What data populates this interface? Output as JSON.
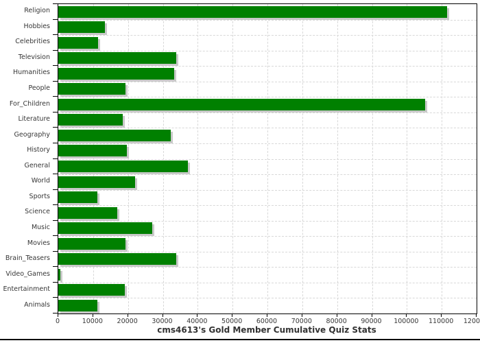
{
  "chart_data": {
    "type": "bar",
    "orientation": "horizontal",
    "title": "cms4613's Gold Member Cumulative Quiz Stats",
    "title_position": "bottom",
    "xlabel": "",
    "ylabel": "",
    "xlim": [
      0,
      120000
    ],
    "x_ticks": [
      0,
      10000,
      20000,
      30000,
      40000,
      50000,
      60000,
      70000,
      80000,
      90000,
      100000,
      110000,
      120000
    ],
    "x_tick_labels": [
      "0",
      "10000",
      "20000",
      "30000",
      "40000",
      "50000",
      "60000",
      "70000",
      "80000",
      "90000",
      "100000",
      "110000",
      "120000"
    ],
    "grid": "dashed vertical lines at each x tick and dashed horizontal lines at category boundaries",
    "legend": "none",
    "bar_color": "#008000",
    "bar_shadow_color": "#c9c9c9",
    "categories": [
      "Religion",
      "Hobbies",
      "Celebrities",
      "Television",
      "Humanities",
      "People",
      "For_Children",
      "Literature",
      "Geography",
      "History",
      "General",
      "World",
      "Sports",
      "Science",
      "Music",
      "Movies",
      "Brain_Teasers",
      "Video_Games",
      "Entertainment",
      "Animals"
    ],
    "values": [
      111500,
      13400,
      11500,
      33800,
      33200,
      19300,
      105200,
      18500,
      32300,
      19700,
      37200,
      22000,
      11200,
      16900,
      26900,
      19300,
      33900,
      650,
      19100,
      11300
    ]
  }
}
